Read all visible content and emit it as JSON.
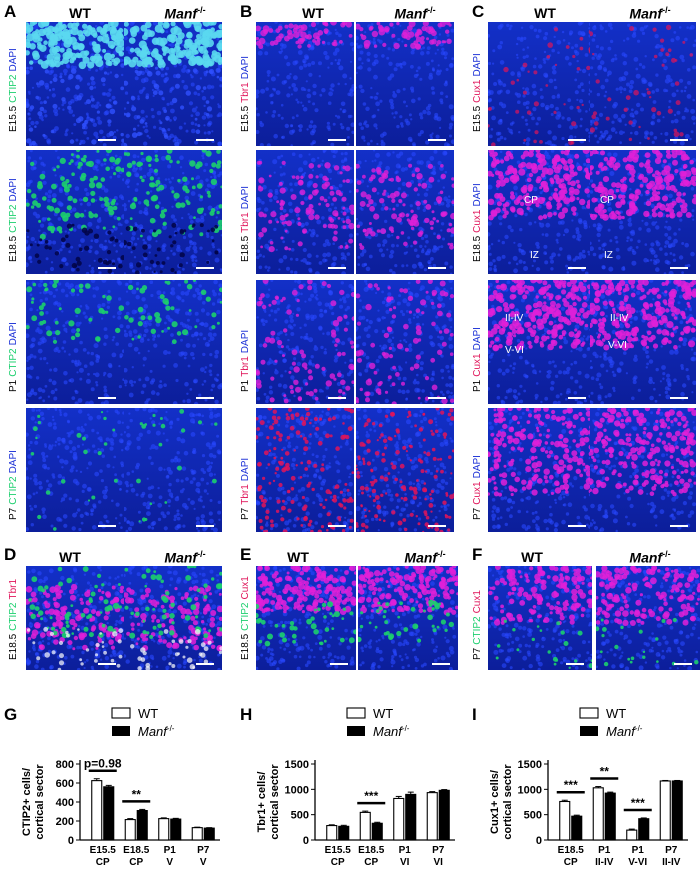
{
  "col_titles": {
    "wt": "WT",
    "ko": "Manf",
    "ko_sup": "-/-"
  },
  "panels_top": [
    "A",
    "B",
    "C"
  ],
  "panels_mid": [
    "D",
    "E",
    "F"
  ],
  "panels_graph": [
    "G",
    "H",
    "I"
  ],
  "rows": [
    "E15.5",
    "E18.5",
    "P1",
    "P7"
  ],
  "markers": {
    "ctip2": "CTIP2",
    "tbr1": "Tbr1",
    "cux1": "Cux1",
    "dapi": "DAPI"
  },
  "c_inlabels": {
    "cp": "CP",
    "iz": "IZ",
    "upper": "II-IV",
    "lower": "V-VI"
  },
  "colors": {
    "dapi": "#1a2fd6",
    "green": "#1ccf6e",
    "red": "#e0145a",
    "magenta": "#e020d8"
  },
  "legend": {
    "wt": "WT",
    "ko": "Manf",
    "ko_sup": "-/-"
  },
  "chart_data": [
    {
      "type": "bar",
      "ylabel": "CTIP2+ cells/ cortical sector",
      "ylim": [
        0,
        800
      ],
      "yticks": [
        0,
        200,
        400,
        600,
        800
      ],
      "categories": [
        [
          "E15.5",
          "CP"
        ],
        [
          "E18.5",
          "CP"
        ],
        [
          "P1",
          "V"
        ],
        [
          "P7",
          "V"
        ]
      ],
      "series": [
        {
          "name": "WT",
          "values": [
            625,
            215,
            225,
            130
          ]
        },
        {
          "name": "Manf -/-",
          "values": [
            560,
            310,
            220,
            125
          ]
        }
      ],
      "errors": [
        [
          20,
          10,
          8,
          5
        ],
        [
          15,
          12,
          8,
          5
        ]
      ],
      "annotations": [
        {
          "cat": 0,
          "text": "p=0.98"
        },
        {
          "cat": 1,
          "text": "**"
        }
      ]
    },
    {
      "type": "bar",
      "ylabel": "Tbr1+ cells/ cortical sector",
      "ylim": [
        0,
        1500
      ],
      "yticks": [
        0,
        500,
        1000,
        1500
      ],
      "categories": [
        [
          "E15.5",
          "CP"
        ],
        [
          "E18.5",
          "CP"
        ],
        [
          "P1",
          "VI"
        ],
        [
          "P7",
          "VI"
        ]
      ],
      "series": [
        {
          "name": "WT",
          "values": [
            285,
            545,
            820,
            935
          ]
        },
        {
          "name": "Manf -/-",
          "values": [
            270,
            330,
            900,
            980
          ]
        }
      ],
      "errors": [
        [
          15,
          25,
          40,
          20
        ],
        [
          20,
          20,
          45,
          15
        ]
      ],
      "annotations": [
        {
          "cat": 1,
          "text": "***"
        }
      ]
    },
    {
      "type": "bar",
      "ylabel": "Cux1+ cells/ cortical sector",
      "ylim": [
        0,
        1500
      ],
      "yticks": [
        0,
        500,
        1000,
        1500
      ],
      "categories": [
        [
          "E18.5",
          "CP"
        ],
        [
          "P1",
          "II-IV"
        ],
        [
          "P1",
          "V-VI"
        ],
        [
          "P7",
          "II-IV"
        ]
      ],
      "series": [
        {
          "name": "WT",
          "values": [
            760,
            1030,
            195,
            1165
          ]
        },
        {
          "name": "Manf -/-",
          "values": [
            470,
            925,
            420,
            1165
          ]
        }
      ],
      "errors": [
        [
          25,
          25,
          20,
          10
        ],
        [
          20,
          20,
          15,
          10
        ]
      ],
      "annotations": [
        {
          "cat": 0,
          "text": "***"
        },
        {
          "cat": 1,
          "text": "**"
        },
        {
          "cat": 2,
          "text": "***"
        }
      ]
    }
  ]
}
